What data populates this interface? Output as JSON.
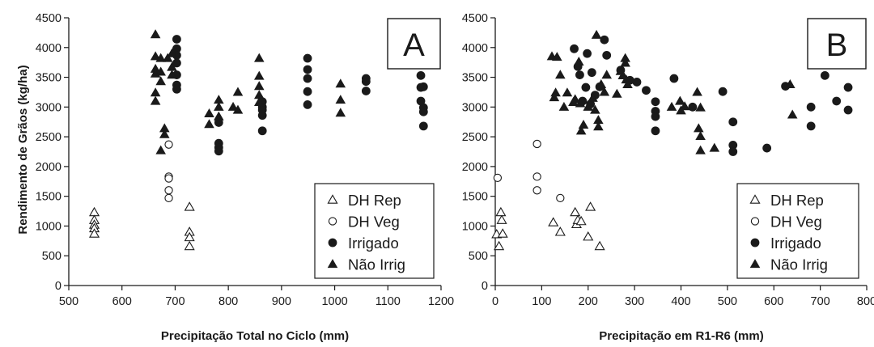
{
  "figure": {
    "ylabel": "Rendimento de Grãos (kg/ha)"
  },
  "legend_symbols": {
    "DH Rep": "open-triangle",
    "DH Veg": "open-circle",
    "Irrigado": "filled-circle",
    "Não Irrig": "filled-triangle"
  },
  "colors": {
    "ink": "#1a1a1a",
    "background": "#ffffff"
  },
  "chart_data": [
    {
      "type": "scatter",
      "panel_label": "A",
      "xlabel": "Precipitação Total no Ciclo (mm)",
      "ylabel": "Rendimento de Grãos (kg/ha)",
      "xlim": [
        500,
        1200
      ],
      "ylim": [
        0,
        4500
      ],
      "x_ticks": [
        500,
        600,
        700,
        800,
        900,
        1000,
        1100,
        1200
      ],
      "y_ticks": [
        0,
        500,
        1000,
        1500,
        2000,
        2500,
        3000,
        3500,
        4000,
        4500
      ],
      "legend_position": "bottom-right",
      "grid": false,
      "series": [
        {
          "name": "DH Rep",
          "points": [
            [
              548,
              1230
            ],
            [
              548,
              1100
            ],
            [
              548,
              1020
            ],
            [
              548,
              960
            ],
            [
              548,
              870
            ],
            [
              727,
              1320
            ],
            [
              727,
              900
            ],
            [
              727,
              810
            ],
            [
              727,
              660
            ]
          ]
        },
        {
          "name": "DH Veg",
          "points": [
            [
              688,
              2370
            ],
            [
              688,
              1830
            ],
            [
              688,
              1800
            ],
            [
              688,
              1600
            ],
            [
              688,
              1470
            ]
          ]
        },
        {
          "name": "Irrigado",
          "points": [
            [
              703,
              4140
            ],
            [
              703,
              3980
            ],
            [
              703,
              3870
            ],
            [
              703,
              3740
            ],
            [
              703,
              3540
            ],
            [
              703,
              3370
            ],
            [
              703,
              3300
            ],
            [
              782,
              2740
            ],
            [
              782,
              2390
            ],
            [
              782,
              2320
            ],
            [
              782,
              2260
            ],
            [
              864,
              3090
            ],
            [
              864,
              3000
            ],
            [
              864,
              2950
            ],
            [
              864,
              2860
            ],
            [
              864,
              2600
            ],
            [
              949,
              3820
            ],
            [
              949,
              3630
            ],
            [
              949,
              3480
            ],
            [
              949,
              3260
            ],
            [
              949,
              3040
            ],
            [
              1059,
              3480
            ],
            [
              1059,
              3430
            ],
            [
              1059,
              3270
            ],
            [
              1162,
              3530
            ],
            [
              1162,
              3330
            ],
            [
              1162,
              3100
            ],
            [
              1167,
              3340
            ],
            [
              1167,
              2990
            ],
            [
              1167,
              2920
            ],
            [
              1167,
              2680
            ]
          ]
        },
        {
          "name": "Não Irrig",
          "points": [
            [
              663,
              4220
            ],
            [
              663,
              3850
            ],
            [
              663,
              3640
            ],
            [
              663,
              3560
            ],
            [
              663,
              3240
            ],
            [
              663,
              3100
            ],
            [
              673,
              3820
            ],
            [
              673,
              3590
            ],
            [
              673,
              3430
            ],
            [
              673,
              2270
            ],
            [
              680,
              2640
            ],
            [
              680,
              2540
            ],
            [
              686,
              3820
            ],
            [
              694,
              3900
            ],
            [
              694,
              3670
            ],
            [
              694,
              3540
            ],
            [
              764,
              2890
            ],
            [
              764,
              2710
            ],
            [
              782,
              3120
            ],
            [
              782,
              3000
            ],
            [
              782,
              2840
            ],
            [
              809,
              3000
            ],
            [
              818,
              3250
            ],
            [
              818,
              2950
            ],
            [
              858,
              3820
            ],
            [
              858,
              3520
            ],
            [
              858,
              3350
            ],
            [
              858,
              3200
            ],
            [
              858,
              3080
            ],
            [
              1011,
              3390
            ],
            [
              1011,
              3120
            ],
            [
              1011,
              2900
            ]
          ]
        }
      ]
    },
    {
      "type": "scatter",
      "panel_label": "B",
      "xlabel": "Precipitação em R1-R6 (mm)",
      "ylabel": "",
      "xlim": [
        0,
        800
      ],
      "ylim": [
        0,
        4500
      ],
      "x_ticks": [
        0,
        100,
        200,
        300,
        400,
        500,
        600,
        700,
        800
      ],
      "y_ticks": [
        0,
        500,
        1000,
        1500,
        2000,
        2500,
        3000,
        3500,
        4000,
        4500
      ],
      "legend_position": "bottom-right",
      "grid": false,
      "series": [
        {
          "name": "DH Rep",
          "points": [
            [
              3,
              860
            ],
            [
              8,
              660
            ],
            [
              12,
              1230
            ],
            [
              14,
              1100
            ],
            [
              16,
              870
            ],
            [
              125,
              1060
            ],
            [
              140,
              900
            ],
            [
              172,
              1230
            ],
            [
              175,
              1030
            ],
            [
              178,
              1100
            ],
            [
              185,
              1080
            ],
            [
              200,
              820
            ],
            [
              205,
              1320
            ],
            [
              225,
              660
            ]
          ]
        },
        {
          "name": "DH Veg",
          "points": [
            [
              5,
              1810
            ],
            [
              90,
              2380
            ],
            [
              90,
              1830
            ],
            [
              90,
              1600
            ],
            [
              140,
              1470
            ]
          ]
        },
        {
          "name": "Irrigado",
          "points": [
            [
              170,
              3980
            ],
            [
              178,
              3680
            ],
            [
              182,
              3540
            ],
            [
              188,
              3100
            ],
            [
              195,
              3330
            ],
            [
              198,
              3900
            ],
            [
              205,
              3050
            ],
            [
              208,
              3580
            ],
            [
              215,
              3200
            ],
            [
              225,
              3340
            ],
            [
              235,
              4130
            ],
            [
              240,
              3870
            ],
            [
              270,
              3620
            ],
            [
              290,
              3450
            ],
            [
              305,
              3420
            ],
            [
              325,
              3280
            ],
            [
              345,
              3090
            ],
            [
              345,
              2930
            ],
            [
              345,
              2840
            ],
            [
              345,
              2600
            ],
            [
              385,
              3480
            ],
            [
              425,
              3000
            ],
            [
              490,
              3260
            ],
            [
              512,
              2750
            ],
            [
              512,
              2360
            ],
            [
              512,
              2250
            ],
            [
              585,
              2310
            ],
            [
              625,
              3350
            ],
            [
              680,
              3000
            ],
            [
              680,
              2680
            ],
            [
              710,
              3530
            ],
            [
              735,
              3100
            ],
            [
              760,
              3330
            ],
            [
              760,
              2950
            ]
          ]
        },
        {
          "name": "Não Irrig",
          "points": [
            [
              122,
              3850
            ],
            [
              127,
              3160
            ],
            [
              130,
              3240
            ],
            [
              133,
              3840
            ],
            [
              140,
              3540
            ],
            [
              148,
              3000
            ],
            [
              155,
              3240
            ],
            [
              168,
              3080
            ],
            [
              172,
              3130
            ],
            [
              180,
              3760
            ],
            [
              183,
              3060
            ],
            [
              185,
              2600
            ],
            [
              190,
              2700
            ],
            [
              200,
              3000
            ],
            [
              210,
              3150
            ],
            [
              215,
              2950
            ],
            [
              218,
              4210
            ],
            [
              222,
              2670
            ],
            [
              222,
              2780
            ],
            [
              228,
              3380
            ],
            [
              235,
              3250
            ],
            [
              240,
              3540
            ],
            [
              262,
              3220
            ],
            [
              270,
              3600
            ],
            [
              275,
              3530
            ],
            [
              280,
              3820
            ],
            [
              280,
              3740
            ],
            [
              282,
              3460
            ],
            [
              285,
              3380
            ],
            [
              380,
              3000
            ],
            [
              398,
              3100
            ],
            [
              400,
              2940
            ],
            [
              408,
              3010
            ],
            [
              435,
              3250
            ],
            [
              438,
              2640
            ],
            [
              442,
              2990
            ],
            [
              442,
              2510
            ],
            [
              442,
              2270
            ],
            [
              472,
              2310
            ],
            [
              635,
              3380
            ],
            [
              640,
              2870
            ]
          ]
        }
      ]
    }
  ]
}
